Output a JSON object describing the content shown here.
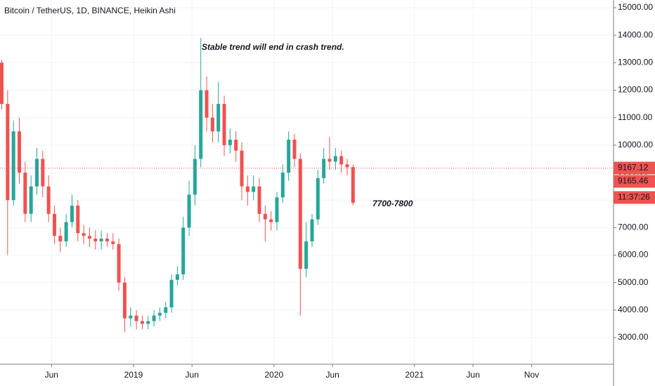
{
  "chart_data": {
    "type": "candlestick",
    "title": "Bitcoin / TetherUS, 1D, BINANCE, Heikin Ashi",
    "annotations": [
      "Stable trend will end in crash trend.",
      "7700-7800"
    ],
    "price_line": 9167.12,
    "close_tag": 9165.46,
    "countdown": "11:37:26",
    "up_color": "#26a69a",
    "down_color": "#ef5350",
    "annotation_color": "#f23645",
    "grid": true,
    "xlim": [
      0.6,
      53
    ],
    "xticks": [
      {
        "value": 5,
        "label": "Jun"
      },
      {
        "value": 12,
        "label": "2019"
      },
      {
        "value": 17,
        "label": "Jun"
      },
      {
        "value": 24,
        "label": "2020"
      },
      {
        "value": 29,
        "label": "Jun"
      },
      {
        "value": 36,
        "label": "2021"
      },
      {
        "value": 41,
        "label": "Jun"
      },
      {
        "value": 46,
        "label": "Nov"
      }
    ],
    "ylim": [
      2030,
      15280
    ],
    "yticks": [
      {
        "value": 3000,
        "label": "3000.00"
      },
      {
        "value": 4000,
        "label": "4000.00"
      },
      {
        "value": 5000,
        "label": "5000.00"
      },
      {
        "value": 6000,
        "label": "6000.00"
      },
      {
        "value": 7000,
        "label": "7000.00"
      },
      {
        "value": 8000,
        "label": "8000.00"
      },
      {
        "value": 9000,
        "label": "9000.00"
      },
      {
        "value": 10000,
        "label": "10000.00"
      },
      {
        "value": 11000,
        "label": "11000.00"
      },
      {
        "value": 12000,
        "label": "12000.00"
      },
      {
        "value": 13000,
        "label": "13000.00"
      },
      {
        "value": 14000,
        "label": "14000.00"
      },
      {
        "value": 15000,
        "label": "15000.00"
      }
    ],
    "x": [
      0.75,
      1.25,
      1.75,
      2.25,
      2.75,
      3.25,
      3.75,
      4.25,
      4.75,
      5.25,
      5.75,
      6.25,
      6.75,
      7.25,
      7.75,
      8.25,
      8.75,
      9.25,
      9.75,
      10.25,
      10.75,
      11.25,
      11.75,
      12.25,
      12.75,
      13.25,
      13.75,
      14.25,
      14.75,
      15.25,
      15.75,
      16.25,
      16.75,
      17.25,
      17.75,
      18.25,
      18.75,
      19.25,
      19.75,
      20.25,
      20.75,
      21.25,
      21.75,
      22.25,
      22.75,
      23.25,
      23.75,
      24.25,
      24.75,
      25.25,
      25.75,
      26.25,
      26.75,
      27.25,
      27.75,
      28.25,
      28.75,
      29.25,
      29.75,
      30.25,
      30.75
    ],
    "open": [
      13000,
      11500,
      8000,
      10500,
      9000,
      7500,
      8500,
      9500,
      8500,
      7500,
      6700,
      6500,
      7200,
      7800,
      6800,
      6700,
      6600,
      6500,
      6600,
      6500,
      6400,
      5000,
      3700,
      3800,
      3600,
      3500,
      3600,
      3800,
      3900,
      4100,
      5100,
      5300,
      7000,
      8200,
      9500,
      12000,
      11000,
      10500,
      11500,
      10000,
      10200,
      9800,
      8500,
      8300,
      8500,
      7500,
      7300,
      7200,
      8100,
      9000,
      10200,
      9500,
      5500,
      6500,
      7300,
      8800,
      9500,
      9400,
      9600,
      9300,
      9200
    ],
    "high": [
      13100,
      12000,
      10900,
      11000,
      9400,
      8900,
      9900,
      9800,
      8900,
      7800,
      7000,
      7500,
      8200,
      8000,
      7100,
      7000,
      6900,
      6900,
      6800,
      6800,
      6600,
      5200,
      4100,
      4000,
      3800,
      3800,
      4000,
      4100,
      4300,
      5300,
      5600,
      7400,
      8700,
      10000,
      13900,
      12500,
      11500,
      12300,
      11800,
      10600,
      10500,
      10100,
      8900,
      8900,
      8800,
      7800,
      7600,
      8300,
      9300,
      10500,
      10400,
      9700,
      7200,
      7500,
      9100,
      9900,
      10300,
      9900,
      9800,
      9500,
      9300
    ],
    "low": [
      11300,
      6000,
      7800,
      8600,
      7200,
      7200,
      8200,
      8100,
      7200,
      6400,
      6100,
      6300,
      7000,
      6500,
      6400,
      6300,
      6200,
      6200,
      6300,
      6200,
      4700,
      3200,
      3400,
      3300,
      3300,
      3300,
      3400,
      3600,
      3700,
      3900,
      4900,
      5100,
      6700,
      7800,
      9200,
      10500,
      10100,
      10100,
      9600,
      9700,
      9400,
      8000,
      7800,
      8000,
      7200,
      6500,
      6900,
      6900,
      7900,
      8700,
      9200,
      3800,
      5200,
      6300,
      7100,
      8600,
      9100,
      9100,
      9000,
      8900,
      7800
    ],
    "close": [
      11500,
      8000,
      10500,
      9000,
      7500,
      8500,
      9500,
      8500,
      7500,
      6700,
      6500,
      7200,
      7800,
      6800,
      6700,
      6600,
      6500,
      6600,
      6500,
      6400,
      5000,
      3700,
      3800,
      3600,
      3500,
      3600,
      3800,
      3900,
      4100,
      5100,
      5300,
      7000,
      8200,
      9500,
      12000,
      11000,
      10500,
      11500,
      10000,
      10200,
      9800,
      8500,
      8300,
      8500,
      7500,
      7300,
      7200,
      8100,
      9000,
      10200,
      9500,
      5500,
      6500,
      7300,
      8800,
      9500,
      9400,
      9600,
      9300,
      9200,
      7900
    ]
  }
}
